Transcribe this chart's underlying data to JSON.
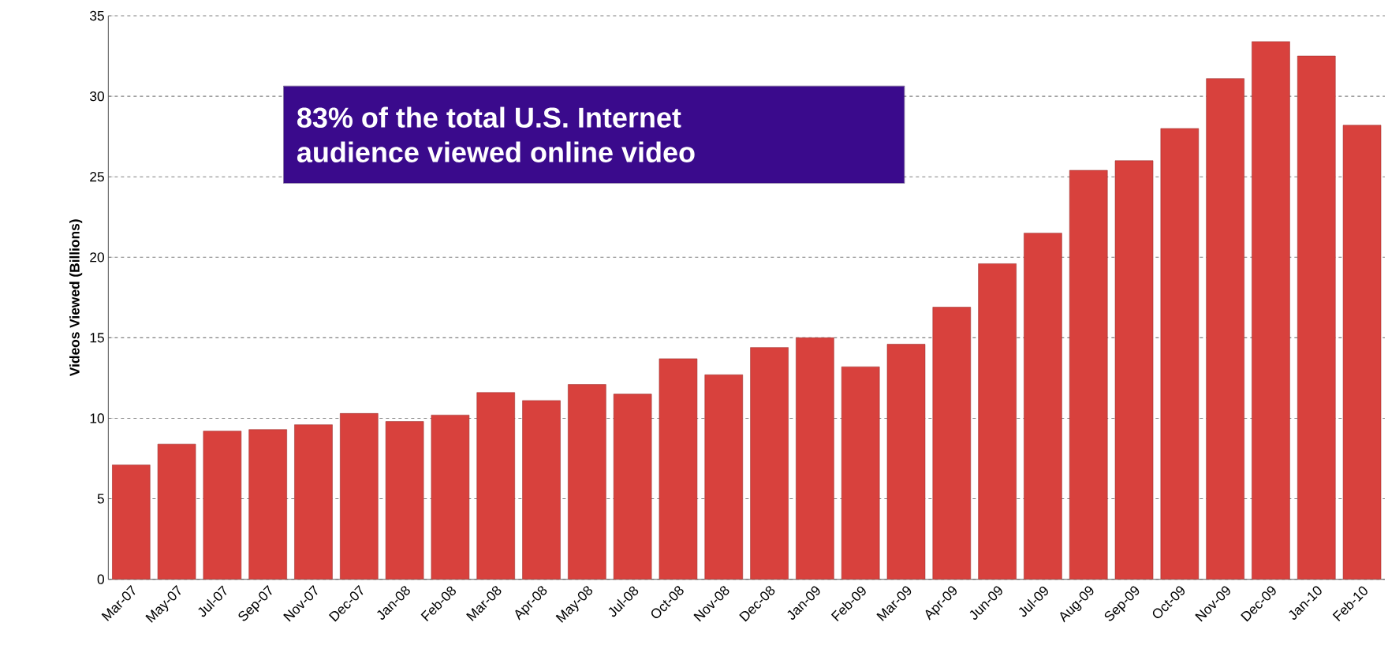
{
  "chart_data": {
    "type": "bar",
    "ylabel": "Videos Viewed (Billions)",
    "categories": [
      "Mar-07",
      "May-07",
      "Jul-07",
      "Sep-07",
      "Nov-07",
      "Dec-07",
      "Jan-08",
      "Feb-08",
      "Mar-08",
      "Apr-08",
      "May-08",
      "Jul-08",
      "Oct-08",
      "Nov-08",
      "Dec-08",
      "Jan-09",
      "Feb-09",
      "Mar-09",
      "Apr-09",
      "Jun-09",
      "Jul-09",
      "Aug-09",
      "Sep-09",
      "Oct-09",
      "Nov-09",
      "Dec-09",
      "Jan-10",
      "Feb-10"
    ],
    "values": [
      7.1,
      8.4,
      9.2,
      9.3,
      9.6,
      10.3,
      9.8,
      10.2,
      11.6,
      11.1,
      12.1,
      11.5,
      13.7,
      12.7,
      14.4,
      15.0,
      13.2,
      14.6,
      16.9,
      19.6,
      21.5,
      25.4,
      26.0,
      28.0,
      31.1,
      33.4,
      32.5,
      28.2
    ],
    "color": "#d8413d",
    "ylim": [
      0,
      35
    ],
    "yticks": [
      0,
      5,
      10,
      15,
      20,
      25,
      30,
      35
    ],
    "grid": "y",
    "annotations": [
      "83% of the total U.S. Internet audience viewed online video"
    ]
  }
}
